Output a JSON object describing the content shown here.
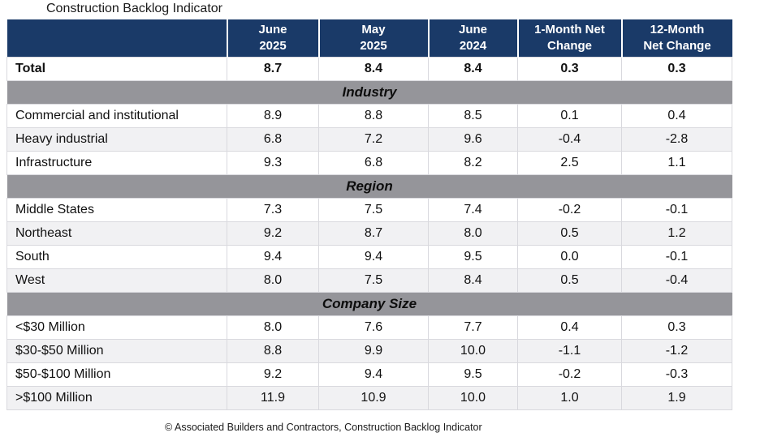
{
  "title": "Construction Backlog Indicator",
  "columns": [
    {
      "label": "June\n2025"
    },
    {
      "label": "May\n2025"
    },
    {
      "label": "June\n2024"
    },
    {
      "label": "1-Month Net\nChange"
    },
    {
      "label": "12-Month\nNet Change"
    }
  ],
  "total": {
    "label": "Total",
    "values": [
      "8.7",
      "8.4",
      "8.4",
      "0.3",
      "0.3"
    ]
  },
  "sections": [
    {
      "title": "Industry",
      "rows": [
        {
          "label": "Commercial and institutional",
          "values": [
            "8.9",
            "8.8",
            "8.5",
            "0.1",
            "0.4"
          ]
        },
        {
          "label": "Heavy industrial",
          "values": [
            "6.8",
            "7.2",
            "9.6",
            "-0.4",
            "-2.8"
          ]
        },
        {
          "label": "Infrastructure",
          "values": [
            "9.3",
            "6.8",
            "8.2",
            "2.5",
            "1.1"
          ]
        }
      ]
    },
    {
      "title": "Region",
      "rows": [
        {
          "label": "Middle States",
          "values": [
            "7.3",
            "7.5",
            "7.4",
            "-0.2",
            "-0.1"
          ]
        },
        {
          "label": "Northeast",
          "values": [
            "9.2",
            "8.7",
            "8.0",
            "0.5",
            "1.2"
          ]
        },
        {
          "label": "South",
          "values": [
            "9.4",
            "9.4",
            "9.5",
            "0.0",
            "-0.1"
          ]
        },
        {
          "label": "West",
          "values": [
            "8.0",
            "7.5",
            "8.4",
            "0.5",
            "-0.4"
          ]
        }
      ]
    },
    {
      "title": "Company Size",
      "rows": [
        {
          "label": "<$30 Million",
          "values": [
            "8.0",
            "7.6",
            "7.7",
            "0.4",
            "0.3"
          ]
        },
        {
          "label": "$30-$50 Million",
          "values": [
            "8.8",
            "9.9",
            "10.0",
            "-1.1",
            "-1.2"
          ]
        },
        {
          "label": "$50-$100 Million",
          "values": [
            "9.2",
            "9.4",
            "9.5",
            "-0.2",
            "-0.3"
          ]
        },
        {
          "label": ">$100 Million",
          "values": [
            "11.9",
            "10.9",
            "10.0",
            "1.0",
            "1.9"
          ]
        }
      ]
    }
  ],
  "source": "© Associated Builders and Contractors, Construction Backlog Indicator",
  "colors": {
    "header_bg": "#1a3a68",
    "band_bg": "#95959a",
    "row_alt_bg": "#f1f1f3",
    "border": "#d9d9de"
  },
  "chart_data": {
    "type": "table",
    "title": "Construction Backlog Indicator",
    "columns": [
      "",
      "June 2025",
      "May 2025",
      "June 2024",
      "1-Month Net Change",
      "12-Month Net Change"
    ],
    "rows": [
      [
        "Total",
        8.7,
        8.4,
        8.4,
        0.3,
        0.3
      ],
      [
        "Industry",
        null,
        null,
        null,
        null,
        null
      ],
      [
        "Commercial and institutional",
        8.9,
        8.8,
        8.5,
        0.1,
        0.4
      ],
      [
        "Heavy industrial",
        6.8,
        7.2,
        9.6,
        -0.4,
        -2.8
      ],
      [
        "Infrastructure",
        9.3,
        6.8,
        8.2,
        2.5,
        1.1
      ],
      [
        "Region",
        null,
        null,
        null,
        null,
        null
      ],
      [
        "Middle States",
        7.3,
        7.5,
        7.4,
        -0.2,
        -0.1
      ],
      [
        "Northeast",
        9.2,
        8.7,
        8.0,
        0.5,
        1.2
      ],
      [
        "South",
        9.4,
        9.4,
        9.5,
        0.0,
        -0.1
      ],
      [
        "West",
        8.0,
        7.5,
        8.4,
        0.5,
        -0.4
      ],
      [
        "Company Size",
        null,
        null,
        null,
        null,
        null
      ],
      [
        "<$30 Million",
        8.0,
        7.6,
        7.7,
        0.4,
        0.3
      ],
      [
        "$30-$50 Million",
        8.8,
        9.9,
        10.0,
        -1.1,
        -1.2
      ],
      [
        "$50-$100 Million",
        9.2,
        9.4,
        9.5,
        -0.2,
        -0.3
      ],
      [
        ">$100 Million",
        11.9,
        10.9,
        10.0,
        1.0,
        1.9
      ]
    ],
    "source_note": "© Associated Builders and Contractors, Construction Backlog Indicator"
  }
}
